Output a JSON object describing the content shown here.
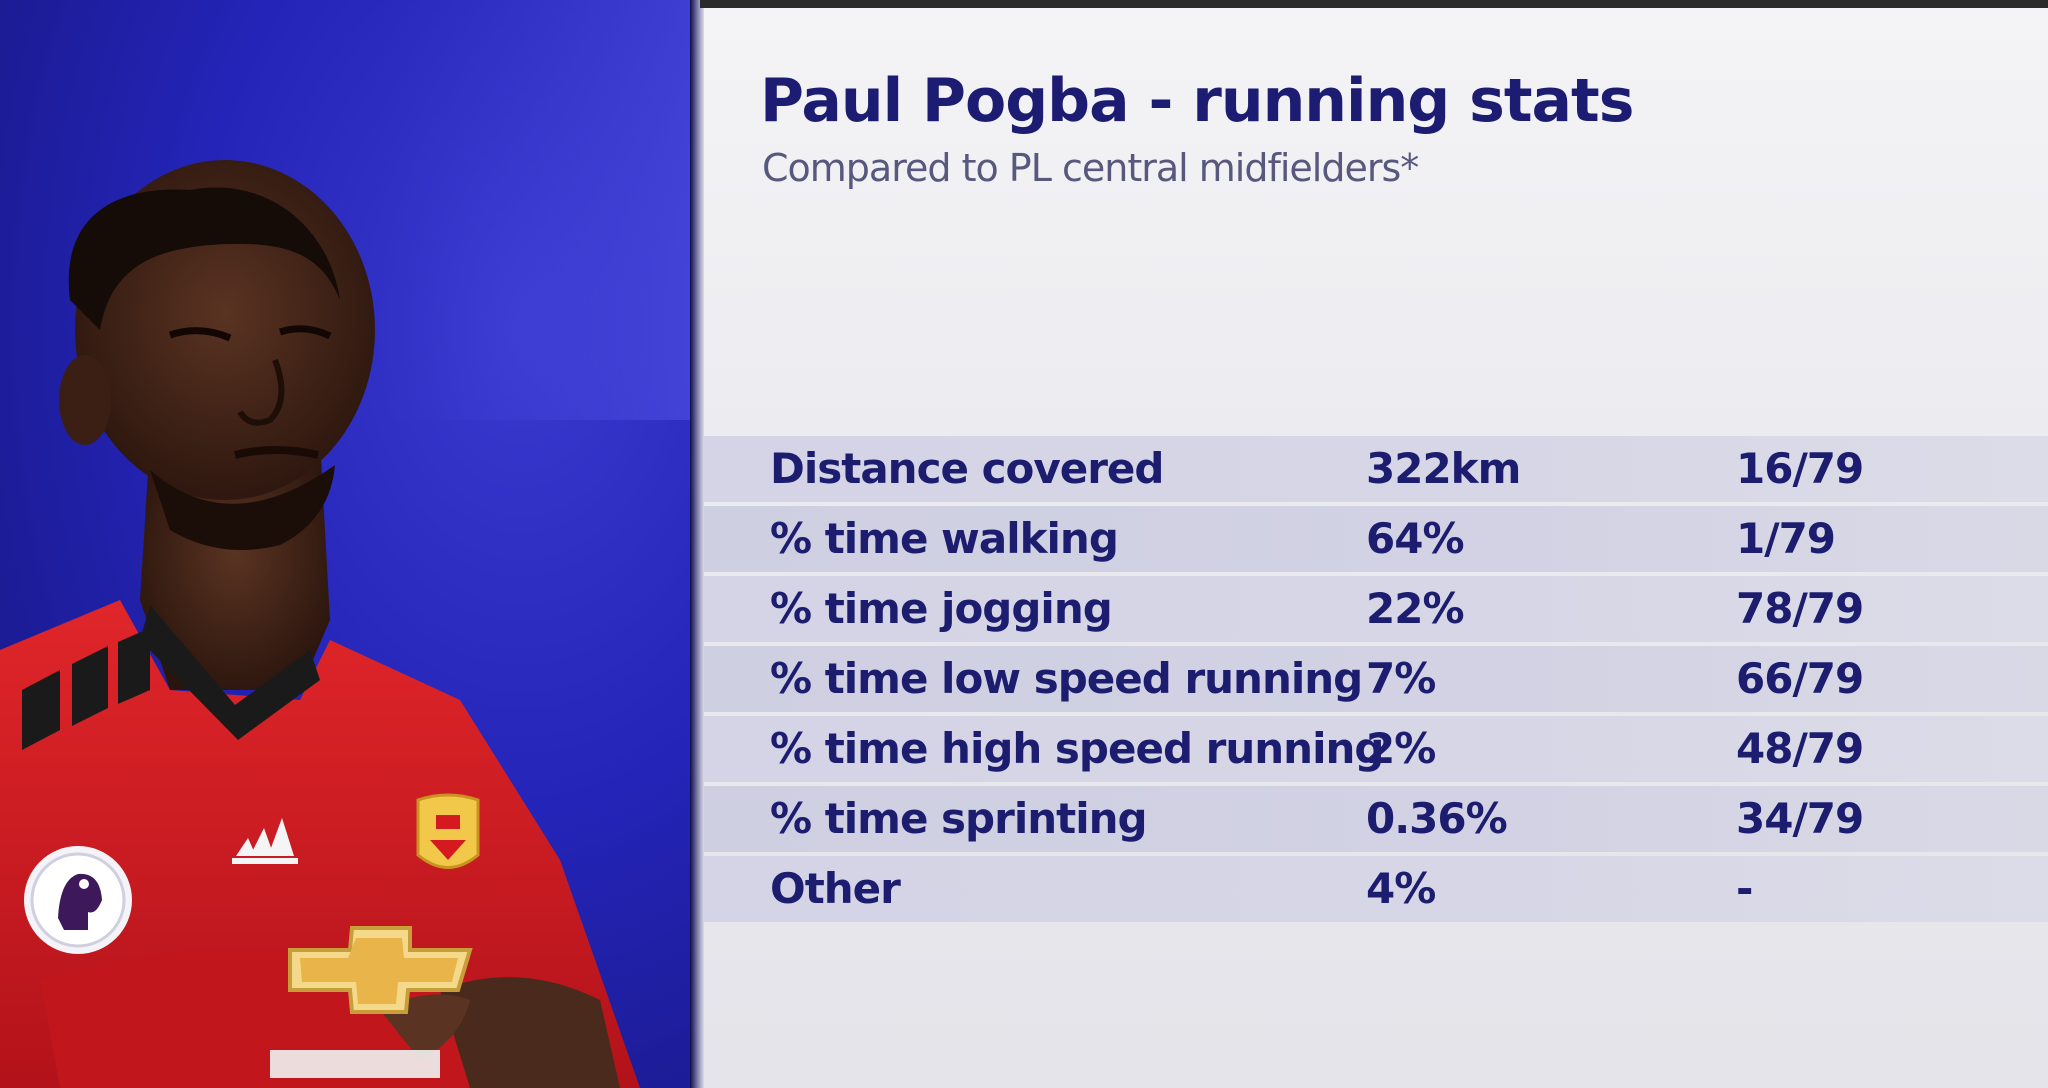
{
  "header": {
    "title": "Paul Pogba - running stats",
    "subtitle": "Compared to PL central midfielders*"
  },
  "stats": [
    {
      "label": "Distance covered",
      "value": "322km",
      "rank": "16/79"
    },
    {
      "label": "% time walking",
      "value": "64%",
      "rank": "1/79"
    },
    {
      "label": "% time jogging",
      "value": "22%",
      "rank": "78/79"
    },
    {
      "label": "% time low speed running",
      "value": "7%",
      "rank": "66/79"
    },
    {
      "label": "% time high speed running",
      "value": "2%",
      "rank": "48/79"
    },
    {
      "label": "% time sprinting",
      "value": "0.36%",
      "rank": "34/79"
    },
    {
      "label": "Other",
      "value": "4%",
      "rank": "-"
    }
  ],
  "colors": {
    "photo_background": "#2424b8",
    "title_text": "#1c1c72",
    "row_background": "#d4d4e6",
    "shirt_red": "#d51a1f"
  },
  "photo": {
    "player_name_icon": "player-photo",
    "badge_icon": "premier-league-badge-icon",
    "crest_icon": "club-crest-icon",
    "brand_icon": "adidas-logo-icon",
    "sponsor_icon": "sponsor-logo-icon"
  }
}
